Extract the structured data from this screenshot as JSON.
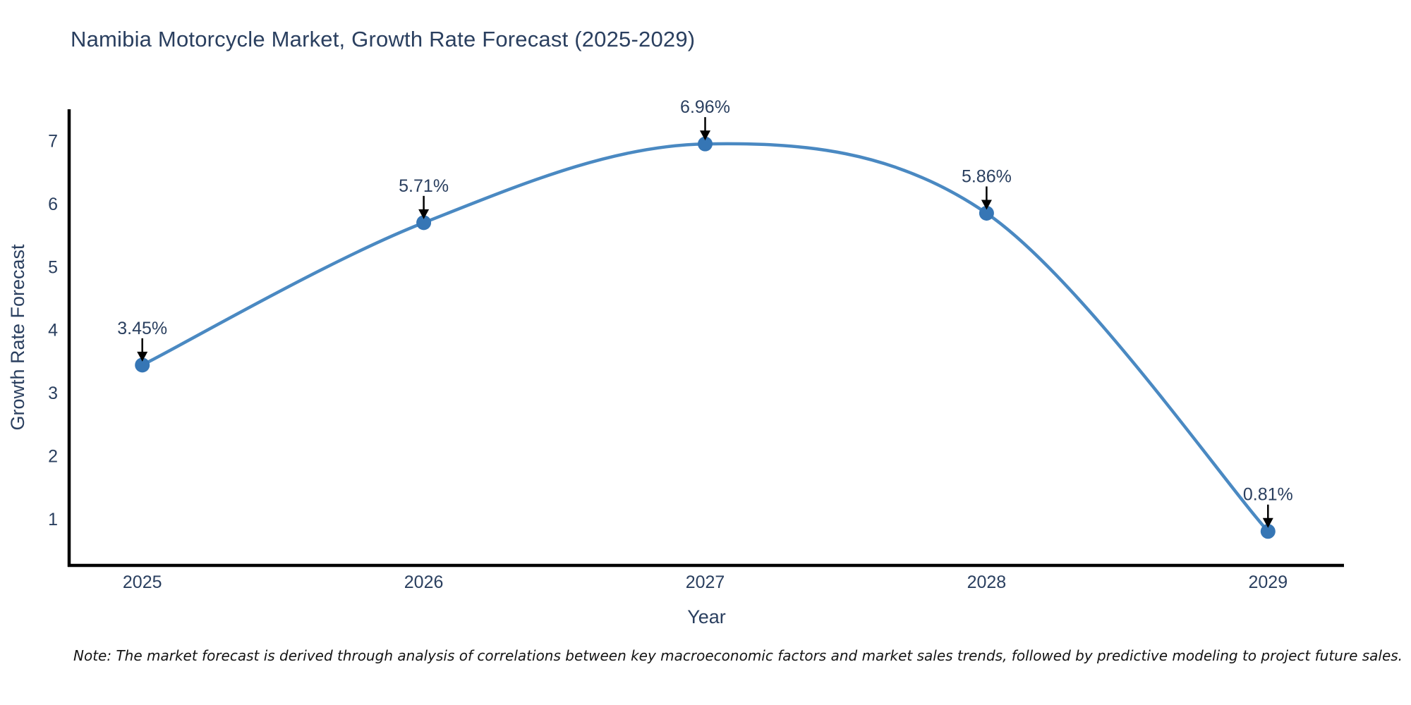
{
  "note": "Note: The market forecast is derived through analysis of correlations between key macroeconomic factors and market sales trends, followed by predictive modeling to project future sales.",
  "colors": {
    "line": "#4a89c2",
    "marker": "#3676b5",
    "axis": "#000000",
    "chart_text": "#2a3f5f",
    "annotation_arrow": "#000000",
    "note_text": "#141414",
    "background": "#ffffff"
  },
  "chart_data": {
    "type": "line",
    "title": "Namibia Motorcycle Market, Growth Rate Forecast (2025-2029)",
    "x": [
      2025,
      2026,
      2027,
      2028,
      2029
    ],
    "x_tick_labels": [
      "2025",
      "2026",
      "2027",
      "2028",
      "2029"
    ],
    "series": [
      {
        "name": "Growth Rate Forecast",
        "values": [
          3.45,
          5.71,
          6.96,
          5.86,
          0.81
        ]
      }
    ],
    "point_labels": [
      "3.45%",
      "5.71%",
      "6.96%",
      "5.86%",
      "0.81%"
    ],
    "xlabel": "Year",
    "ylabel": "Growth Rate Forecast",
    "yticks": [
      1,
      2,
      3,
      4,
      5,
      6,
      7
    ],
    "ylim": [
      0.27,
      7.51
    ],
    "xlim": [
      2024.74,
      2029.27
    ],
    "line_shape": "spline",
    "grid": false,
    "legend_position": "none"
  }
}
